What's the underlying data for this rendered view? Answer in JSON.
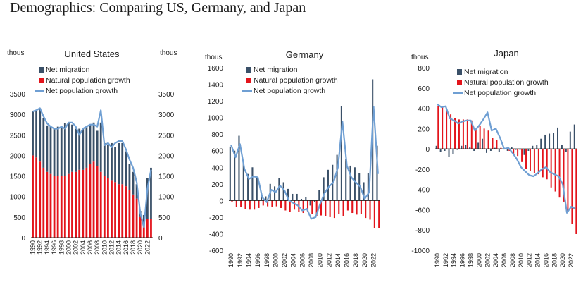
{
  "page": {
    "title": "Demographics: Comparing US, Germany, and Japan"
  },
  "colors": {
    "net_migration": "#3a5068",
    "natural_growth": "#e3141b",
    "net_population": "#6f9fd3"
  },
  "chart_data": [
    {
      "type": "bar",
      "title": "United States",
      "ylabel_left": "thous",
      "ylabel_right": "thous",
      "ylim": [
        0,
        3500
      ],
      "yticks": [
        0,
        500,
        1000,
        1500,
        2000,
        2500,
        3000,
        3500
      ],
      "right_axis": true,
      "stacked": true,
      "x_tick_labels": [
        "1990",
        "1992",
        "1994",
        "1996",
        "1998",
        "2000",
        "2002",
        "2004",
        "2006",
        "2008",
        "2010",
        "2012",
        "2014",
        "2016",
        "2018",
        "2020",
        "2022"
      ],
      "categories": [
        "1990",
        "1991",
        "1992",
        "1993",
        "1994",
        "1995",
        "1996",
        "1997",
        "1998",
        "1999",
        "2000",
        "2001",
        "2002",
        "2003",
        "2004",
        "2005",
        "2006",
        "2007",
        "2008",
        "2009",
        "2010",
        "2011",
        "2012",
        "2013",
        "2014",
        "2015",
        "2016",
        "2017",
        "2018",
        "2019",
        "2020",
        "2021",
        "2022",
        "2023"
      ],
      "legend": [
        "Net migration",
        "Natural population growth",
        "Net population growth"
      ],
      "series": [
        {
          "name": "Net migration",
          "kind": "bar",
          "values": [
            1070,
            1150,
            1300,
            1200,
            1130,
            1150,
            1170,
            1200,
            1200,
            1280,
            1250,
            1150,
            1050,
            1000,
            1000,
            1000,
            950,
            950,
            850,
            1200,
            800,
            800,
            900,
            850,
            1000,
            1000,
            850,
            650,
            550,
            350,
            150,
            250,
            1000,
            1250
          ]
        },
        {
          "name": "Natural population growth",
          "kind": "bar",
          "values": [
            2000,
            1950,
            1850,
            1700,
            1600,
            1550,
            1500,
            1500,
            1500,
            1500,
            1550,
            1600,
            1600,
            1650,
            1650,
            1700,
            1800,
            1850,
            1750,
            1600,
            1500,
            1450,
            1400,
            1350,
            1300,
            1300,
            1250,
            1150,
            1050,
            950,
            500,
            300,
            450,
            450
          ]
        },
        {
          "name": "Net population growth",
          "kind": "line",
          "values": [
            3070,
            3100,
            3150,
            2950,
            2780,
            2700,
            2650,
            2650,
            2700,
            2650,
            2800,
            2800,
            2700,
            2500,
            2650,
            2700,
            2750,
            2750,
            2700,
            3100,
            2250,
            2300,
            2200,
            2300,
            2350,
            2350,
            2150,
            1900,
            1700,
            1350,
            600,
            250,
            1200,
            1650
          ]
        }
      ]
    },
    {
      "type": "bar",
      "title": "Germany",
      "ylabel_left": "thous",
      "ylim": [
        -600,
        1600
      ],
      "yticks": [
        -600,
        -400,
        -200,
        0,
        200,
        400,
        600,
        800,
        1000,
        1200,
        1400,
        1600
      ],
      "stacked": false,
      "x_tick_labels": [
        "1990",
        "1992",
        "1994",
        "1996",
        "1998",
        "2000",
        "2002",
        "2004",
        "2006",
        "2008",
        "2010",
        "2012",
        "2014",
        "2016",
        "2018",
        "2020",
        "2022"
      ],
      "categories": [
        "1990",
        "1991",
        "1992",
        "1993",
        "1994",
        "1995",
        "1996",
        "1997",
        "1998",
        "1999",
        "2000",
        "2001",
        "2002",
        "2003",
        "2004",
        "2005",
        "2006",
        "2007",
        "2008",
        "2009",
        "2010",
        "2011",
        "2012",
        "2013",
        "2014",
        "2015",
        "2016",
        "2017",
        "2018",
        "2019",
        "2020",
        "2021",
        "2022",
        "2023"
      ],
      "legend": [
        "Net migration",
        "Natural population growth",
        "Net population growth"
      ],
      "series": [
        {
          "name": "Net migration",
          "kind": "bar",
          "values": [
            650,
            600,
            780,
            460,
            320,
            400,
            280,
            90,
            50,
            200,
            170,
            270,
            220,
            140,
            80,
            80,
            20,
            40,
            -60,
            -20,
            130,
            280,
            370,
            430,
            550,
            1140,
            500,
            420,
            400,
            330,
            220,
            330,
            1460,
            660
          ]
        },
        {
          "name": "Natural population growth",
          "kind": "bar",
          "values": [
            -20,
            -80,
            -80,
            -100,
            -110,
            -110,
            -90,
            -60,
            -70,
            -80,
            -70,
            -90,
            -120,
            -140,
            -110,
            -140,
            -150,
            -140,
            -160,
            -190,
            -180,
            -190,
            -200,
            -210,
            -160,
            -190,
            -120,
            -150,
            -170,
            -160,
            -210,
            -230,
            -330,
            -330
          ]
        },
        {
          "name": "Net population growth",
          "kind": "line",
          "values": [
            670,
            520,
            680,
            380,
            260,
            290,
            280,
            40,
            -20,
            130,
            100,
            180,
            120,
            0,
            -30,
            -60,
            -120,
            -100,
            -220,
            -200,
            -40,
            90,
            170,
            220,
            400,
            950,
            420,
            280,
            220,
            170,
            20,
            100,
            1130,
            320
          ]
        }
      ]
    },
    {
      "type": "bar",
      "title": "Japan",
      "ylabel_left": "thous",
      "ylim": [
        -1000,
        800
      ],
      "yticks": [
        -1000,
        -800,
        -600,
        -400,
        -200,
        0,
        200,
        400,
        600,
        800
      ],
      "stacked": false,
      "x_tick_labels": [
        "1990",
        "1992",
        "1994",
        "1996",
        "1998",
        "2000",
        "2002",
        "2004",
        "2006",
        "2008",
        "2010",
        "2012",
        "2014",
        "2016",
        "2018",
        "2020",
        "2022"
      ],
      "categories": [
        "1990",
        "1991",
        "1992",
        "1993",
        "1994",
        "1995",
        "1996",
        "1997",
        "1998",
        "1999",
        "2000",
        "2001",
        "2002",
        "2003",
        "2004",
        "2005",
        "2006",
        "2007",
        "2008",
        "2009",
        "2010",
        "2011",
        "2012",
        "2013",
        "2014",
        "2015",
        "2016",
        "2017",
        "2018",
        "2019",
        "2020",
        "2021",
        "2022",
        "2023"
      ],
      "legend": [
        "Net migration",
        "Natural population growth",
        "Net population growth"
      ],
      "series": [
        {
          "name": "Net migration",
          "kind": "bar",
          "values": [
            30,
            -30,
            -20,
            -80,
            -50,
            -10,
            30,
            40,
            20,
            -20,
            60,
            100,
            -40,
            -20,
            10,
            -30,
            0,
            -20,
            20,
            -10,
            -10,
            -60,
            -20,
            30,
            40,
            100,
            140,
            150,
            160,
            210,
            40,
            -30,
            170,
            240
          ]
        },
        {
          "name": "Natural population growth",
          "kind": "bar",
          "values": [
            420,
            420,
            390,
            340,
            300,
            290,
            290,
            290,
            280,
            200,
            230,
            200,
            180,
            110,
            90,
            10,
            0,
            -20,
            -50,
            -70,
            -130,
            -200,
            -220,
            -240,
            -250,
            -280,
            -300,
            -380,
            -420,
            -480,
            -520,
            -610,
            -740,
            -840
          ]
        },
        {
          "name": "Net population growth",
          "kind": "line",
          "values": [
            440,
            410,
            420,
            300,
            280,
            250,
            270,
            280,
            280,
            180,
            230,
            290,
            360,
            180,
            200,
            110,
            0,
            10,
            -40,
            -100,
            -180,
            -220,
            -260,
            -270,
            -240,
            -200,
            -180,
            -230,
            -250,
            -270,
            -350,
            -630,
            -570,
            -590
          ]
        }
      ]
    }
  ]
}
